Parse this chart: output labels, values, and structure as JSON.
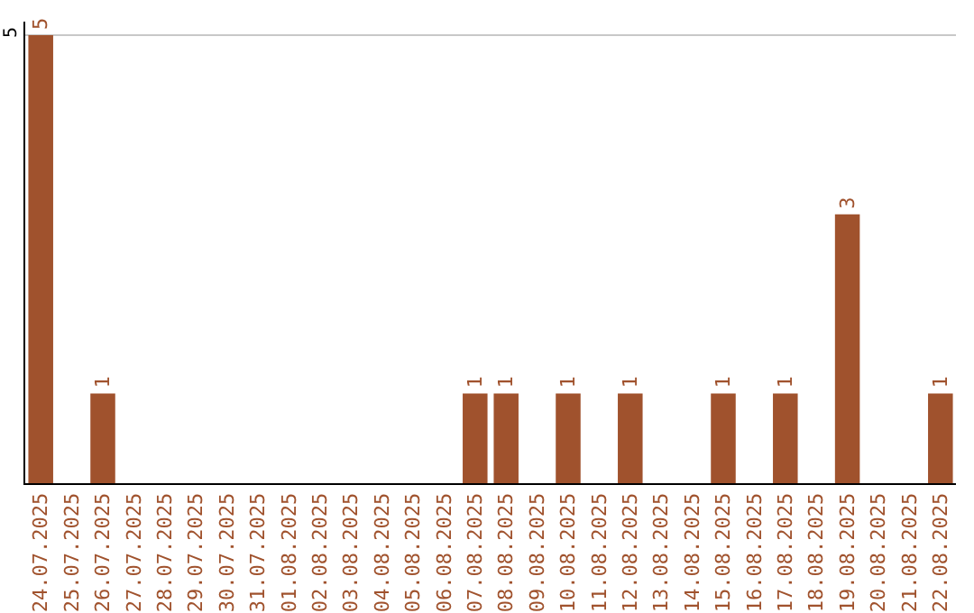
{
  "chart_data": {
    "type": "bar",
    "categories": [
      "24.07.2025",
      "25.07.2025",
      "26.07.2025",
      "27.07.2025",
      "28.07.2025",
      "29.07.2025",
      "30.07.2025",
      "31.07.2025",
      "01.08.2025",
      "02.08.2025",
      "03.08.2025",
      "04.08.2025",
      "05.08.2025",
      "06.08.2025",
      "07.08.2025",
      "08.08.2025",
      "09.08.2025",
      "10.08.2025",
      "11.08.2025",
      "12.08.2025",
      "13.08.2025",
      "14.08.2025",
      "15.08.2025",
      "16.08.2025",
      "17.08.2025",
      "18.08.2025",
      "19.08.2025",
      "20.08.2025",
      "21.08.2025",
      "22.08.2025"
    ],
    "values": [
      5,
      0,
      1,
      0,
      0,
      0,
      0,
      0,
      0,
      0,
      0,
      0,
      0,
      0,
      1,
      1,
      0,
      1,
      0,
      1,
      0,
      0,
      1,
      0,
      1,
      0,
      3,
      0,
      0,
      1
    ],
    "value_labels": [
      "5",
      null,
      "1",
      null,
      null,
      null,
      null,
      null,
      null,
      null,
      null,
      null,
      null,
      null,
      "1",
      "1",
      null,
      "1",
      null,
      "1",
      null,
      null,
      "1",
      null,
      "1",
      null,
      "3",
      null,
      null,
      "1"
    ],
    "color": "#a0522d",
    "ylim": [
      0,
      5.15
    ],
    "yticks": [
      5
    ],
    "grid": "y",
    "legend": false
  }
}
